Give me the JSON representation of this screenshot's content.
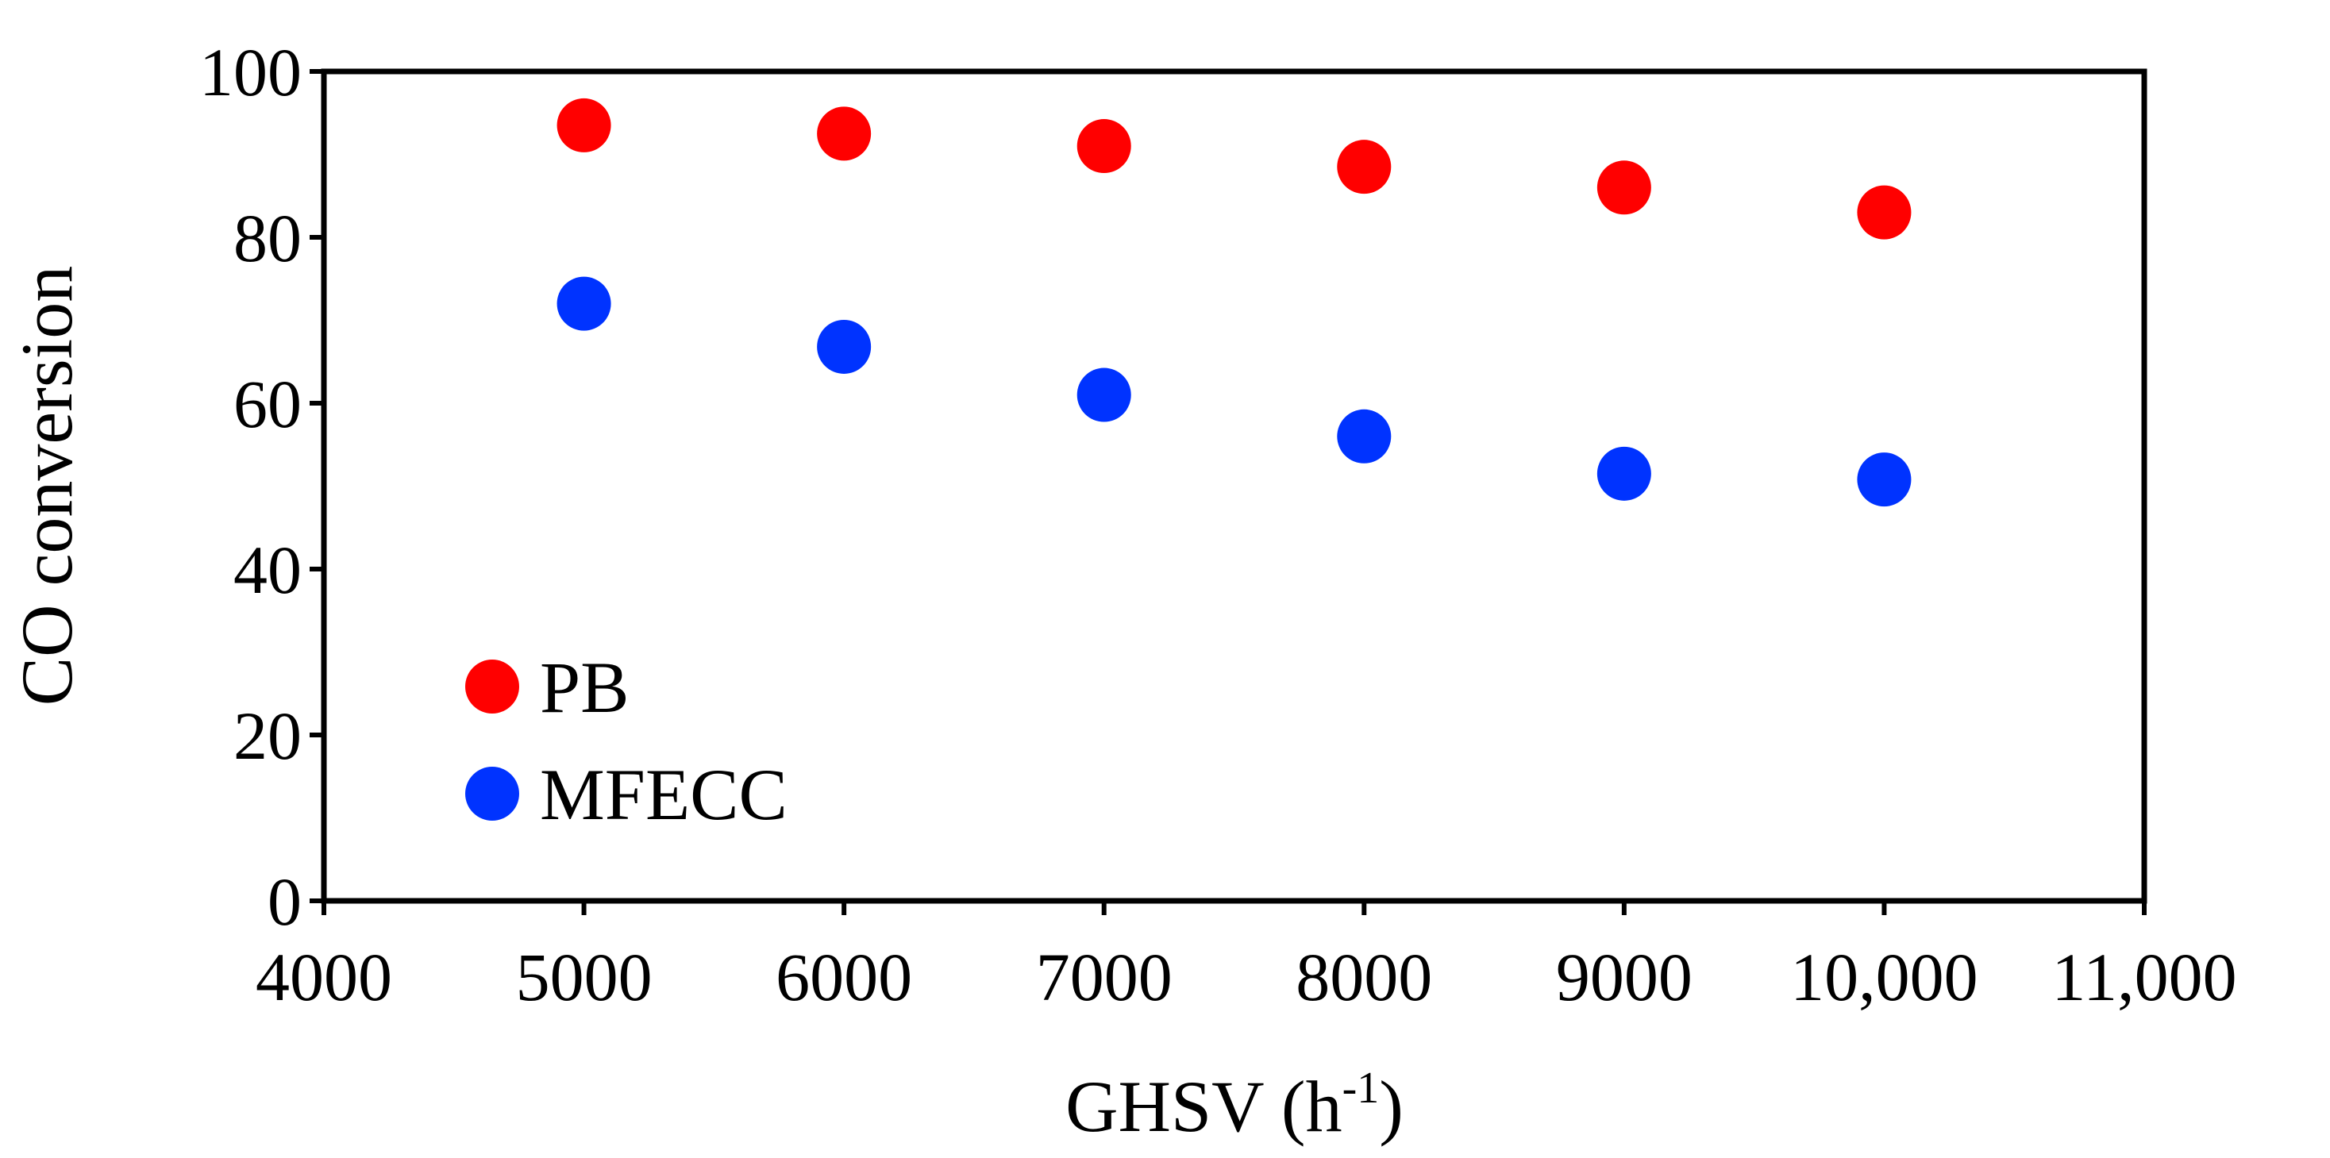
{
  "chart_data": {
    "type": "scatter",
    "title": "",
    "xlabel": "GHSV (h",
    "xlabel_sup": "-1",
    "xlabel_close": ")",
    "ylabel": "CO conversion",
    "xlim": [
      4000,
      11000
    ],
    "ylim": [
      0,
      100
    ],
    "x_ticks": [
      4000,
      5000,
      6000,
      7000,
      8000,
      9000,
      10000,
      11000
    ],
    "x_tick_labels": [
      "4000",
      "5000",
      "6000",
      "7000",
      "8000",
      "9000",
      "10,000",
      "11,000"
    ],
    "y_ticks": [
      0,
      20,
      40,
      60,
      80,
      100
    ],
    "y_tick_labels": [
      "0",
      "20",
      "40",
      "60",
      "80",
      "100"
    ],
    "grid": false,
    "legend_position": "lower-left",
    "series": [
      {
        "name": "PB",
        "color": "#ff0000",
        "x": [
          5000,
          6000,
          7000,
          8000,
          9000,
          10000
        ],
        "values": [
          93.5,
          92.5,
          91,
          88.5,
          86,
          83
        ]
      },
      {
        "name": "MFECC",
        "color": "#0033ff",
        "x": [
          5000,
          6000,
          7000,
          8000,
          9000,
          10000
        ],
        "values": [
          72,
          66.8,
          61,
          56,
          51.5,
          50.8
        ]
      }
    ]
  }
}
